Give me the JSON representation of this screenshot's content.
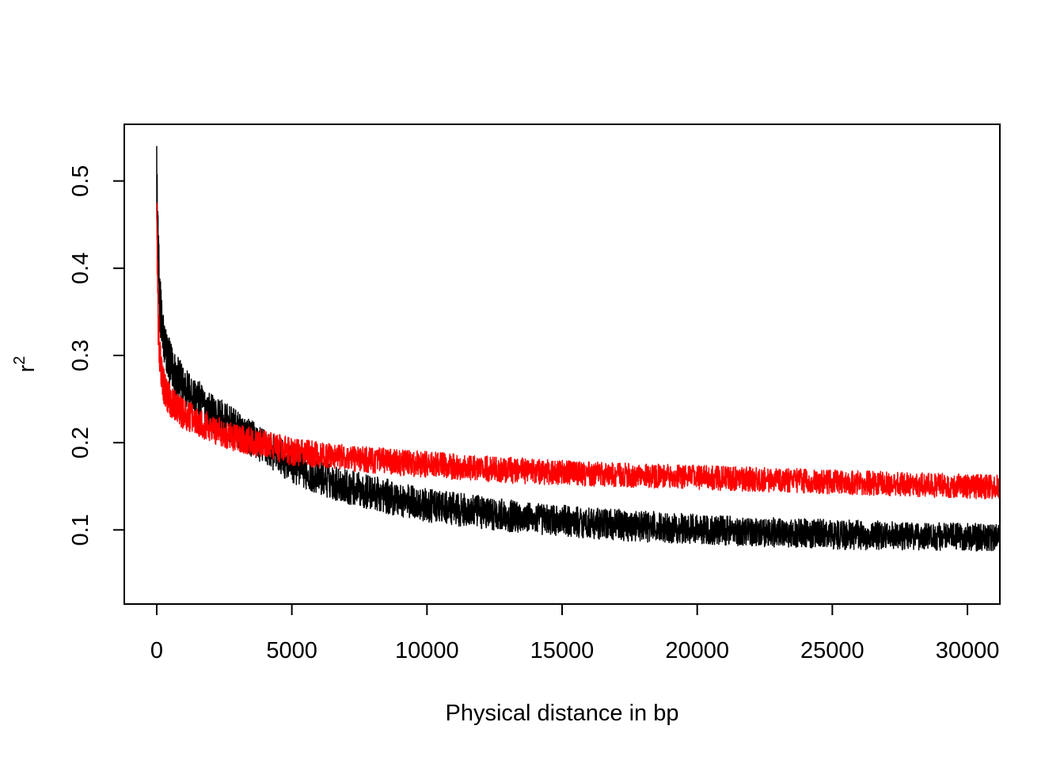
{
  "chart_data": {
    "type": "line",
    "title": "",
    "xlabel": "Physical distance in bp",
    "ylabel": "r",
    "ylabel_superscript": "2",
    "xlim": [
      -1200,
      31200
    ],
    "ylim": [
      0.015,
      0.565
    ],
    "xticks": [
      0,
      5000,
      10000,
      15000,
      20000,
      25000,
      30000
    ],
    "xtick_labels": [
      "0",
      "5000",
      "10000",
      "15000",
      "20000",
      "25000",
      "30000"
    ],
    "yticks": [
      0.1,
      0.2,
      0.3,
      0.4,
      0.5
    ],
    "ytick_labels": [
      "0.1",
      "0.2",
      "0.3",
      "0.4",
      "0.5"
    ],
    "grid": false,
    "legend": "none",
    "series": [
      {
        "color": "#000000",
        "x": [
          0,
          50,
          100,
          200,
          300,
          500,
          750,
          1000,
          1500,
          2000,
          2500,
          3000,
          4000,
          5000,
          6000,
          7000,
          8000,
          9000,
          10000,
          12000,
          14000,
          16000,
          18000,
          20000,
          22000,
          24000,
          26000,
          28000,
          30000,
          31200
        ],
        "mean": [
          0.5,
          0.42,
          0.37,
          0.33,
          0.31,
          0.29,
          0.275,
          0.265,
          0.25,
          0.235,
          0.225,
          0.215,
          0.195,
          0.175,
          0.16,
          0.15,
          0.142,
          0.135,
          0.128,
          0.12,
          0.113,
          0.108,
          0.104,
          0.101,
          0.098,
          0.096,
          0.094,
          0.093,
          0.092,
          0.091
        ],
        "amplitude": [
          0.04,
          0.04,
          0.035,
          0.03,
          0.028,
          0.026,
          0.025,
          0.024,
          0.023,
          0.022,
          0.022,
          0.021,
          0.021,
          0.021,
          0.02,
          0.02,
          0.02,
          0.02,
          0.019,
          0.019,
          0.018,
          0.018,
          0.018,
          0.017,
          0.017,
          0.017,
          0.017,
          0.016,
          0.016,
          0.016
        ],
        "max": 0.54
      },
      {
        "color": "#ff0000",
        "x": [
          0,
          50,
          100,
          200,
          300,
          500,
          750,
          1000,
          1500,
          2000,
          2500,
          3000,
          4000,
          5000,
          6000,
          7000,
          8000,
          9000,
          10000,
          12000,
          14000,
          16000,
          18000,
          20000,
          22000,
          24000,
          26000,
          28000,
          30000,
          31200
        ],
        "mean": [
          0.47,
          0.34,
          0.3,
          0.275,
          0.26,
          0.248,
          0.24,
          0.233,
          0.225,
          0.217,
          0.21,
          0.205,
          0.198,
          0.19,
          0.186,
          0.183,
          0.18,
          0.177,
          0.175,
          0.17,
          0.167,
          0.164,
          0.162,
          0.16,
          0.158,
          0.156,
          0.154,
          0.152,
          0.15,
          0.149
        ],
        "amplitude": [
          0.03,
          0.03,
          0.025,
          0.022,
          0.02,
          0.018,
          0.018,
          0.018,
          0.017,
          0.017,
          0.016,
          0.016,
          0.016,
          0.016,
          0.015,
          0.015,
          0.015,
          0.015,
          0.015,
          0.015,
          0.015,
          0.014,
          0.014,
          0.014,
          0.014,
          0.014,
          0.014,
          0.014,
          0.014,
          0.014
        ],
        "max": 0.475
      }
    ]
  }
}
